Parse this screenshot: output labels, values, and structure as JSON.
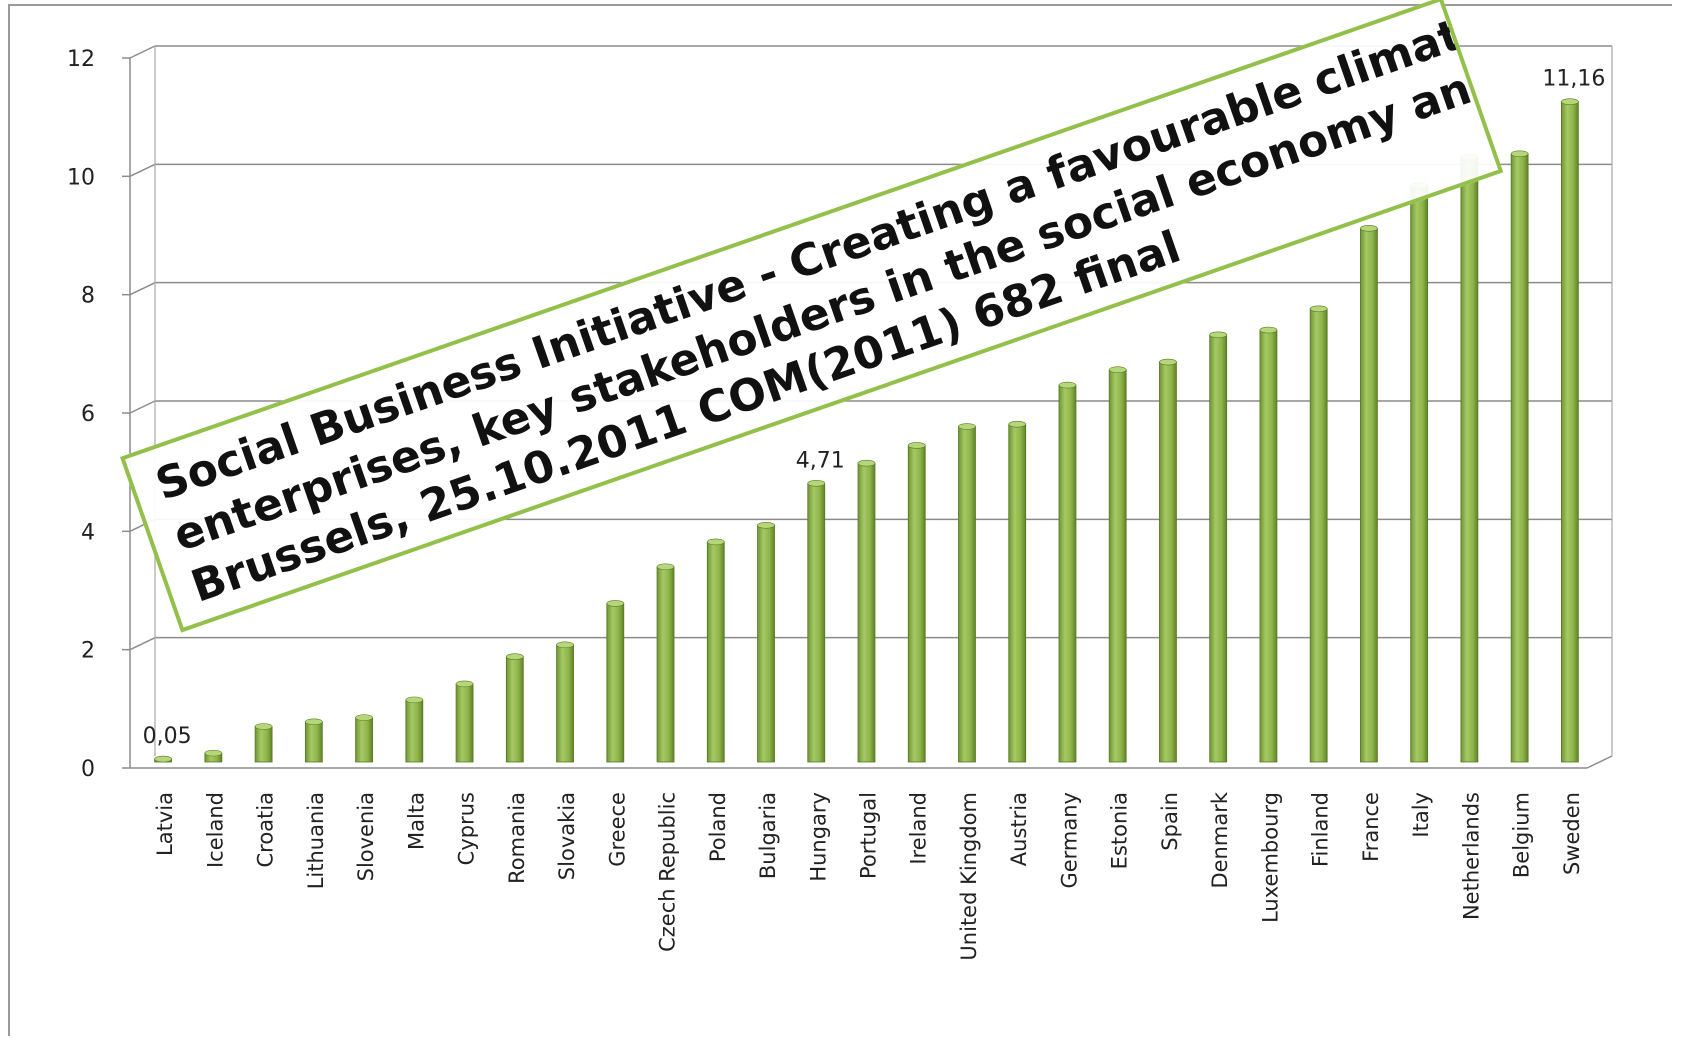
{
  "chart_data": {
    "type": "bar",
    "categories": [
      "Latvia",
      "Iceland",
      "Croatia",
      "Lithuania",
      "Slovenia",
      "Malta",
      "Cyprus",
      "Romania",
      "Slovakia",
      "Greece",
      "Czech Republic",
      "Poland",
      "Bulgaria",
      "Hungary",
      "Portugal",
      "Ireland",
      "United Kingdom",
      "Austria",
      "Germany",
      "Estonia",
      "Spain",
      "Denmark",
      "Luxembourg",
      "Finland",
      "France",
      "Italy",
      "Netherlands",
      "Belgium",
      "Sweden"
    ],
    "values": [
      0.05,
      0.15,
      0.6,
      0.68,
      0.75,
      1.05,
      1.32,
      1.78,
      1.98,
      2.68,
      3.3,
      3.72,
      4.0,
      4.71,
      5.05,
      5.35,
      5.67,
      5.71,
      6.37,
      6.63,
      6.76,
      7.22,
      7.3,
      7.66,
      9.02,
      9.74,
      10.22,
      10.28,
      11.16
    ],
    "data_labels": [
      {
        "index": 0,
        "text": "0,05"
      },
      {
        "index": 13,
        "text": "4,71"
      },
      {
        "index": 28,
        "text": "11,16"
      }
    ],
    "ylim": [
      0,
      12
    ],
    "yticks": [
      "0",
      "2",
      "4",
      "6",
      "8",
      "10",
      "12"
    ],
    "grid": true,
    "bar_color": "#8fb44a",
    "title": "",
    "xlabel": "",
    "ylabel": ""
  },
  "annotation": {
    "line1": "Social Business Initiative - Creating a favourable climate for social",
    "line2": "enterprises, key stakeholders in the social economy and innovation,",
    "line3": "Brussels, 25.10.2011 COM(2011) 682 final",
    "border_color": "#92c04a"
  }
}
